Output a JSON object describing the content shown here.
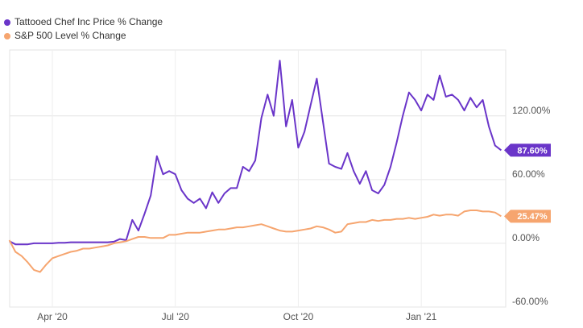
{
  "chart_data": {
    "type": "line",
    "categories": [
      null,
      null,
      null,
      null,
      null,
      null,
      null,
      "Apr '20",
      null,
      null,
      null,
      null,
      null,
      null,
      null,
      null,
      null,
      null,
      null,
      null,
      null,
      null,
      null,
      null,
      null,
      null,
      null,
      "Jul '20",
      null,
      null,
      null,
      null,
      null,
      null,
      null,
      null,
      null,
      null,
      null,
      null,
      null,
      null,
      null,
      null,
      null,
      null,
      null,
      "Oct '20",
      null,
      null,
      null,
      null,
      null,
      null,
      null,
      null,
      null,
      null,
      null,
      null,
      null,
      null,
      null,
      null,
      null,
      null,
      null,
      "Jan '21",
      null,
      null,
      null,
      null,
      null,
      null,
      null,
      null,
      null,
      null,
      null,
      null,
      null
    ],
    "series": [
      {
        "name": "Tattooed Chef Inc Price % Change",
        "color": "#6a35c9",
        "values": [
          2,
          -1,
          -1,
          -1,
          0,
          0,
          0,
          0,
          0.5,
          0.5,
          1,
          1,
          1,
          1,
          1,
          1,
          1,
          1.5,
          4,
          3,
          22,
          12,
          28,
          45,
          82,
          65,
          68,
          65,
          50,
          42,
          38,
          42,
          33,
          48,
          38,
          47,
          52,
          52,
          72,
          68,
          78,
          118,
          140,
          120,
          172,
          110,
          135,
          90,
          105,
          130,
          155,
          115,
          75,
          72,
          70,
          85,
          68,
          56,
          68,
          50,
          47,
          55,
          72,
          95,
          120,
          142,
          135,
          125,
          140,
          135,
          158,
          138,
          140,
          135,
          125,
          137,
          128,
          135,
          110,
          92,
          87.6
        ],
        "value_labels": [
          null,
          null,
          null,
          null,
          null,
          null,
          null,
          null,
          null,
          null,
          null,
          null,
          null,
          null,
          null,
          null,
          null,
          null,
          null,
          null,
          null,
          null,
          null,
          null,
          null,
          null,
          null,
          null,
          null,
          null,
          null,
          null,
          null,
          null,
          null,
          null,
          null,
          null,
          null,
          null,
          null,
          null,
          null,
          null,
          null,
          null,
          null,
          null,
          null,
          null,
          null,
          null,
          null,
          null,
          null,
          null,
          null,
          null,
          null,
          null,
          null,
          null,
          null,
          null,
          null,
          null,
          null,
          null,
          null,
          null,
          null,
          null,
          null,
          null,
          null,
          null,
          null,
          null,
          null,
          null,
          "87.60%"
        ]
      },
      {
        "name": "S&P 500 Level % Change",
        "color": "#f6a56f",
        "values": [
          3,
          -8,
          -12,
          -18,
          -25,
          -27,
          -20,
          -14,
          -12,
          -10,
          -8,
          -7,
          -5,
          -5,
          -4,
          -3,
          -2,
          0,
          1,
          2,
          4,
          6,
          6,
          5,
          5,
          5,
          8,
          8,
          9,
          10,
          10,
          10,
          11,
          12,
          13,
          13,
          14,
          15,
          15,
          16,
          17,
          18,
          16,
          14,
          12,
          11,
          11,
          12,
          13,
          14,
          16,
          15,
          13,
          10,
          11,
          18,
          19,
          20,
          20,
          22,
          21,
          22,
          22,
          23,
          23,
          24,
          23,
          24,
          25,
          27,
          26,
          27,
          27,
          26,
          30,
          31,
          31,
          30,
          30,
          29,
          25.47
        ],
        "value_labels": [
          null,
          null,
          null,
          null,
          null,
          null,
          null,
          null,
          null,
          null,
          null,
          null,
          null,
          null,
          null,
          null,
          null,
          null,
          null,
          null,
          null,
          null,
          null,
          null,
          null,
          null,
          null,
          null,
          null,
          null,
          null,
          null,
          null,
          null,
          null,
          null,
          null,
          null,
          null,
          null,
          null,
          null,
          null,
          null,
          null,
          null,
          null,
          null,
          null,
          null,
          null,
          null,
          null,
          null,
          null,
          null,
          null,
          null,
          null,
          null,
          null,
          null,
          null,
          null,
          null,
          null,
          null,
          null,
          null,
          null,
          null,
          null,
          null,
          null,
          null,
          null,
          null,
          null,
          null,
          null,
          "25.47%"
        ]
      }
    ],
    "ylim": [
      -60,
      182
    ],
    "yticks": [
      {
        "value": -60,
        "label": "-60.00%"
      },
      {
        "value": 0,
        "label": "0.00%"
      },
      {
        "value": 60,
        "label": "60.00%"
      },
      {
        "value": 120,
        "label": "120.00%"
      }
    ],
    "grid": true
  }
}
